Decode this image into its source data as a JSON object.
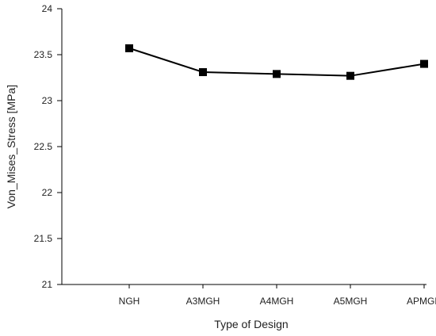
{
  "chart_data": {
    "type": "line",
    "title": "",
    "xlabel": "Type of Design",
    "ylabel": "Von_Mises_Stress [MPa]",
    "categories": [
      "NGH",
      "A3MGH",
      "A4MGH",
      "A5MGH",
      "APMGH"
    ],
    "series": [
      {
        "values": [
          23.57,
          23.31,
          23.29,
          23.27,
          23.4
        ]
      }
    ],
    "ylim": [
      21,
      24
    ],
    "yticks": [
      "21",
      "21.5",
      "22",
      "22.5",
      "23",
      "23.5",
      "24"
    ],
    "grid": false,
    "legend": "none",
    "colors": {
      "line": "#000000",
      "marker": "#000000",
      "axis": "#000000"
    }
  }
}
